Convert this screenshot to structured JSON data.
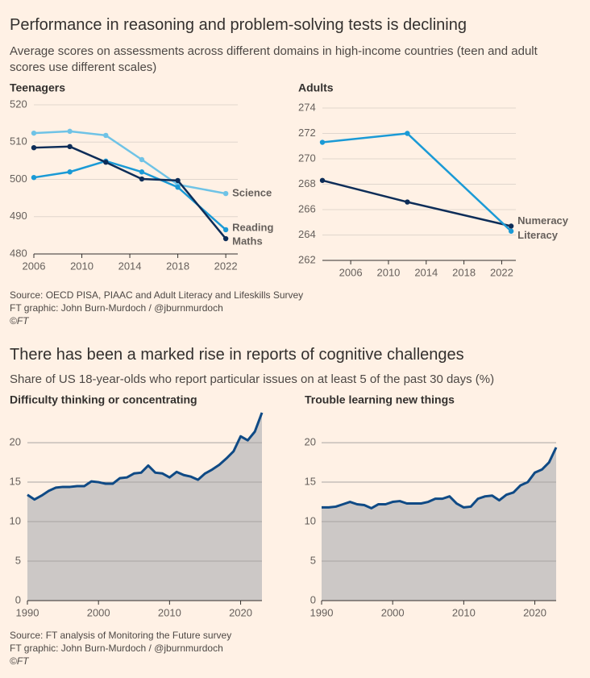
{
  "sections": [
    {
      "title": "Performance in reasoning and problem-solving tests is declining",
      "subtitle": "Average scores on assessments across different domains in high-income countries (teen and adult scores use different scales)",
      "source": [
        "Source: OECD PISA, PIAAC and Adult Literacy and Lifeskills Survey",
        "FT graphic: John Burn-Murdoch / @jburnmurdoch",
        "©FT"
      ]
    },
    {
      "title": "There has been a marked rise in reports of cognitive challenges",
      "subtitle": "Share of US 18-year-olds who report particular issues on at least 5 of the past 30 days (%)",
      "source": [
        "Source: FT analysis of Monitoring the Future survey",
        "FT graphic: John Burn-Murdoch / @jburnmurdoch",
        "©FT"
      ]
    }
  ],
  "chart_data": [
    {
      "type": "line",
      "title": "Teenagers",
      "x": [
        2006,
        2009,
        2012,
        2015,
        2018,
        2022
      ],
      "series": [
        {
          "name": "Science",
          "color": "#6fc3e6",
          "values": [
            512.4,
            512.9,
            511.8,
            505.3,
            498.6,
            496.2
          ]
        },
        {
          "name": "Reading",
          "color": "#1a9ad6",
          "values": [
            500.5,
            502,
            504.9,
            502,
            497.9,
            486.5
          ]
        },
        {
          "name": "Maths",
          "color": "#0d2d58",
          "values": [
            508.5,
            508.8,
            504.6,
            500.1,
            499.7,
            484.1
          ]
        }
      ],
      "xlim": [
        2006,
        2023
      ],
      "xticks": [
        2006,
        2010,
        2014,
        2018,
        2022
      ],
      "ylim": [
        480,
        520
      ],
      "yticks": [
        480,
        490,
        500,
        510,
        520
      ],
      "grid": true
    },
    {
      "type": "line",
      "title": "Adults",
      "x": [
        2003,
        2012,
        2023
      ],
      "series": [
        {
          "name": "Numeracy",
          "color": "#0d2d58",
          "values": [
            268.3,
            266.6,
            264.7
          ]
        },
        {
          "name": "Literacy",
          "color": "#1a9ad6",
          "values": [
            271.3,
            272,
            264.3
          ]
        }
      ],
      "xlim": [
        2003,
        2023.5
      ],
      "xticks": [
        2006,
        2010,
        2014,
        2018,
        2022
      ],
      "ylim": [
        262,
        274
      ],
      "yticks": [
        262,
        264,
        266,
        268,
        270,
        272,
        274
      ],
      "grid": true
    },
    {
      "type": "area",
      "title": "Difficulty thinking or concentrating",
      "x": [
        1990,
        1991,
        1992,
        1993,
        1994,
        1995,
        1996,
        1997,
        1998,
        1999,
        2000,
        2001,
        2002,
        2003,
        2004,
        2005,
        2006,
        2007,
        2008,
        2009,
        2010,
        2011,
        2012,
        2013,
        2014,
        2015,
        2016,
        2017,
        2018,
        2019,
        2020,
        2021,
        2022,
        2023
      ],
      "values": [
        13.4,
        12.8,
        13.3,
        13.9,
        14.3,
        14.4,
        14.4,
        14.5,
        14.5,
        15.1,
        15.0,
        14.8,
        14.8,
        15.5,
        15.6,
        16.1,
        16.2,
        17.1,
        16.2,
        16.1,
        15.6,
        16.3,
        15.9,
        15.7,
        15.3,
        16.1,
        16.6,
        17.2,
        18.0,
        18.9,
        20.8,
        20.3,
        21.4,
        23.8
      ],
      "color": "#0f4a85",
      "fill": "#ccc8c6",
      "xlim": [
        1990,
        2023
      ],
      "xticks": [
        1990,
        2000,
        2010,
        2020
      ],
      "ylim": [
        0,
        24.5
      ],
      "yticks": [
        0,
        5,
        10,
        15,
        20
      ],
      "grid": true
    },
    {
      "type": "area",
      "title": "Trouble learning new things",
      "x": [
        1990,
        1991,
        1992,
        1993,
        1994,
        1995,
        1996,
        1997,
        1998,
        1999,
        2000,
        2001,
        2002,
        2003,
        2004,
        2005,
        2006,
        2007,
        2008,
        2009,
        2010,
        2011,
        2012,
        2013,
        2014,
        2015,
        2016,
        2017,
        2018,
        2019,
        2020,
        2021,
        2022,
        2023
      ],
      "values": [
        11.8,
        11.8,
        11.9,
        12.2,
        12.5,
        12.2,
        12.1,
        11.7,
        12.2,
        12.2,
        12.5,
        12.6,
        12.3,
        12.3,
        12.3,
        12.5,
        12.9,
        12.9,
        13.2,
        12.3,
        11.8,
        11.9,
        12.9,
        13.2,
        13.3,
        12.7,
        13.4,
        13.7,
        14.6,
        15.0,
        16.2,
        16.6,
        17.5,
        19.4
      ],
      "color": "#0f4a85",
      "fill": "#ccc8c6",
      "xlim": [
        1990,
        2023
      ],
      "xticks": [
        1990,
        2000,
        2010,
        2020
      ],
      "ylim": [
        0,
        24.5
      ],
      "yticks": [
        0,
        5,
        10,
        15,
        20
      ],
      "grid": true
    }
  ]
}
